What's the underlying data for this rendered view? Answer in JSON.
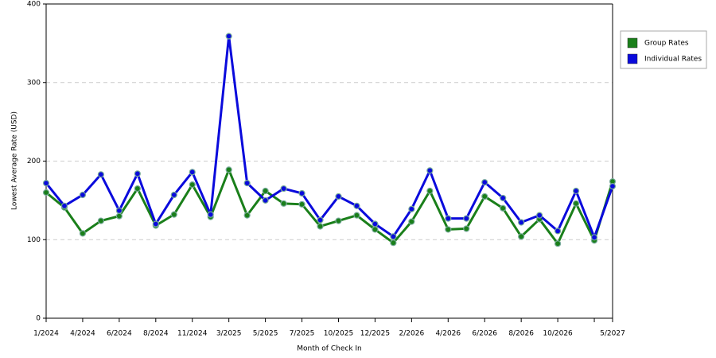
{
  "chart_data": {
    "type": "line",
    "x_label": "Month of Check In",
    "y_label": "Lowest Average Rate (USD)",
    "categories": [
      "1/2024",
      null,
      "4/2024",
      null,
      "6/2024",
      null,
      "8/2024",
      null,
      "11/2024",
      null,
      "3/2025",
      null,
      "5/2025",
      null,
      "7/2025",
      null,
      "10/2025",
      null,
      "12/2025",
      null,
      "2/2026",
      null,
      "4/2026",
      null,
      "6/2026",
      null,
      "8/2026",
      null,
      "10/2026",
      null,
      null,
      "5/2027"
    ],
    "series": [
      {
        "name": "Group Rates",
        "color": "#1a7f1a",
        "values": [
          160,
          141,
          108,
          124,
          130,
          165,
          118,
          132,
          170,
          129,
          189,
          131,
          162,
          146,
          145,
          117,
          124,
          131,
          113,
          96,
          123,
          162,
          113,
          114,
          155,
          140,
          104,
          126,
          95,
          146,
          99,
          174
        ]
      },
      {
        "name": "Individual Rates",
        "color": "#0a0adc",
        "values": [
          172,
          143,
          157,
          183,
          137,
          184,
          120,
          157,
          186,
          132,
          359,
          172,
          150,
          165,
          159,
          125,
          155,
          143,
          120,
          104,
          139,
          188,
          127,
          127,
          173,
          153,
          122,
          131,
          111,
          162,
          103,
          168
        ]
      }
    ],
    "ylim": [
      0,
      400
    ],
    "yticks": [
      0,
      100,
      200,
      300,
      400
    ],
    "grid": true,
    "legend": "top-right"
  }
}
